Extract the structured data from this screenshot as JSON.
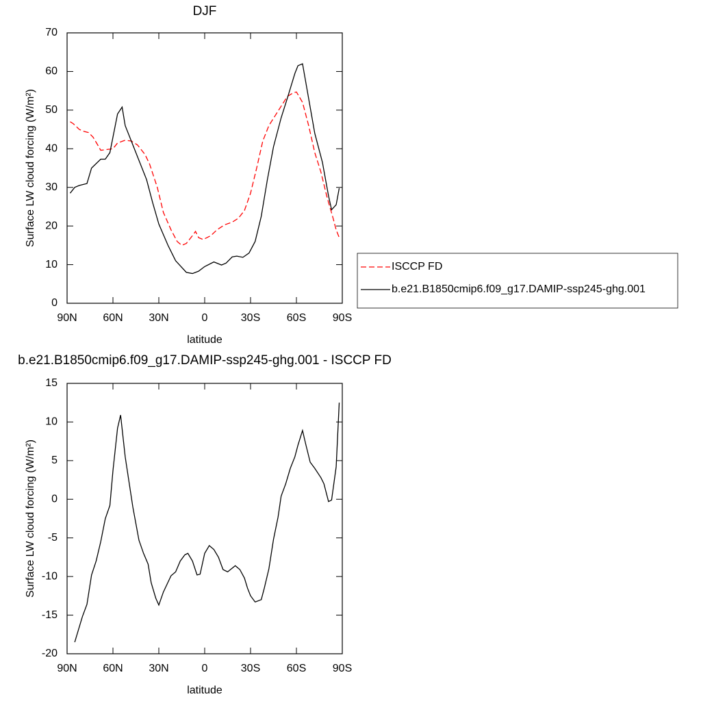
{
  "chart_data": [
    {
      "type": "line",
      "title": "DJF",
      "xlabel": "latitude",
      "ylabel": "Surface LW cloud forcing (W/m²)",
      "xlim": [
        90,
        -90
      ],
      "xticks": [
        {
          "value": 90,
          "label": "90N"
        },
        {
          "value": 60,
          "label": "60N"
        },
        {
          "value": 30,
          "label": "30N"
        },
        0,
        {
          "value": -30,
          "label": "30S"
        },
        {
          "value": -60,
          "label": "60S"
        },
        {
          "value": -90,
          "label": "90S"
        }
      ],
      "ylim": [
        0,
        70
      ],
      "yticks": [
        0,
        10,
        20,
        30,
        40,
        50,
        60,
        70
      ],
      "legend": "right",
      "series": [
        {
          "name": "ISCCP FD",
          "color": "#ff0000",
          "dashed": true,
          "x": [
            88,
            86,
            82,
            79,
            76,
            73,
            70,
            68,
            64,
            60,
            57,
            52,
            48,
            44,
            39,
            36,
            31,
            27,
            22,
            18,
            15,
            12,
            8,
            6,
            4,
            1,
            -4,
            -8,
            -13,
            -18,
            -22,
            -26,
            -30,
            -34,
            -38,
            -42,
            -46,
            -50,
            -54,
            -58,
            -60,
            -64,
            -68,
            -72,
            -76,
            -80,
            -84,
            -86,
            -88
          ],
          "values": [
            47,
            46.5,
            45,
            44.5,
            44.2,
            43,
            41,
            39.6,
            39.8,
            40,
            41.5,
            42.2,
            42,
            41,
            38.5,
            36,
            30,
            23.5,
            19,
            16,
            15,
            15.5,
            17.5,
            18.6,
            17,
            16.5,
            17.5,
            19,
            20.3,
            21,
            22,
            24,
            28.5,
            35,
            42,
            46,
            48.5,
            51,
            53.5,
            54.5,
            54.7,
            52,
            46,
            39,
            34,
            27.5,
            22,
            19,
            17
          ]
        },
        {
          "name": "b.e21.B1850cmip6.f09_g17.DAMIP-ssp245-ghg.001",
          "color": "#000000",
          "dashed": false,
          "x": [
            88,
            85,
            82,
            77,
            74,
            68,
            65,
            62,
            57,
            54,
            52,
            48,
            43,
            38,
            34,
            30,
            24,
            19,
            12,
            8,
            4,
            0,
            -6,
            -11,
            -14,
            -18,
            -21,
            -25,
            -29,
            -33,
            -37,
            -41,
            -45,
            -50,
            -54,
            -59,
            -61,
            -64,
            -66,
            -72,
            -77,
            -81,
            -83,
            -86,
            -88
          ],
          "values": [
            28.5,
            30,
            30.5,
            31,
            35,
            37.3,
            37.3,
            39,
            49,
            50.8,
            46,
            42,
            37,
            32,
            26,
            20.5,
            15,
            11,
            8,
            7.7,
            8.3,
            9.5,
            10.7,
            9.9,
            10.4,
            12,
            12.2,
            11.9,
            13,
            16,
            22.5,
            32,
            40.5,
            48,
            53,
            59.5,
            61.5,
            62,
            57.5,
            44,
            36.5,
            27.8,
            24.2,
            25.5,
            29.8
          ]
        }
      ]
    },
    {
      "type": "line",
      "title": "b.e21.B1850cmip6.f09_g17.DAMIP-ssp245-ghg.001 - ISCCP FD",
      "xlabel": "latitude",
      "ylabel": "Surface LW cloud forcing (W/m²)",
      "xlim": [
        90,
        -90
      ],
      "xticks": [
        {
          "value": 90,
          "label": "90N"
        },
        {
          "value": 60,
          "label": "60N"
        },
        {
          "value": 30,
          "label": "30N"
        },
        0,
        {
          "value": -30,
          "label": "30S"
        },
        {
          "value": -60,
          "label": "60S"
        },
        {
          "value": -90,
          "label": "90S"
        }
      ],
      "ylim": [
        -20,
        15
      ],
      "yticks": [
        -20,
        -15,
        -10,
        -5,
        0,
        5,
        10,
        15
      ],
      "series": [
        {
          "color": "#000000",
          "dashed": false,
          "x": [
            85,
            80,
            77,
            74,
            71,
            68,
            65,
            62,
            60,
            57,
            55,
            52,
            49,
            47,
            43,
            40,
            37,
            35,
            32,
            30,
            27,
            22,
            19,
            16,
            13,
            11,
            8,
            5,
            3,
            0,
            -3,
            -6,
            -9,
            -12,
            -15,
            -20,
            -23,
            -26,
            -28,
            -30,
            -33,
            -37,
            -39,
            -42,
            -45,
            -48,
            -50,
            -53,
            -56,
            -59,
            -61,
            -64,
            -66,
            -69,
            -72,
            -76,
            -78,
            -81,
            -83,
            -86,
            -88
          ],
          "values": [
            -18.5,
            -15.2,
            -13.6,
            -9.8,
            -8,
            -5.5,
            -2.5,
            -0.8,
            3.7,
            9.2,
            10.9,
            5.5,
            1.6,
            -1,
            -5.3,
            -7,
            -8.4,
            -10.8,
            -12.8,
            -13.7,
            -12,
            -9.9,
            -9.4,
            -8,
            -7.2,
            -7,
            -8,
            -9.8,
            -9.7,
            -7,
            -6,
            -6.5,
            -7.5,
            -9.1,
            -9.4,
            -8.6,
            -9.1,
            -10.2,
            -11.5,
            -12.5,
            -13.3,
            -13,
            -11.5,
            -9,
            -5.2,
            -2.3,
            0.4,
            2,
            4,
            5.5,
            7,
            8.9,
            7.2,
            4.8,
            4,
            2.8,
            2,
            -0.3,
            -0.1,
            4.2,
            12.5
          ]
        }
      ]
    }
  ]
}
